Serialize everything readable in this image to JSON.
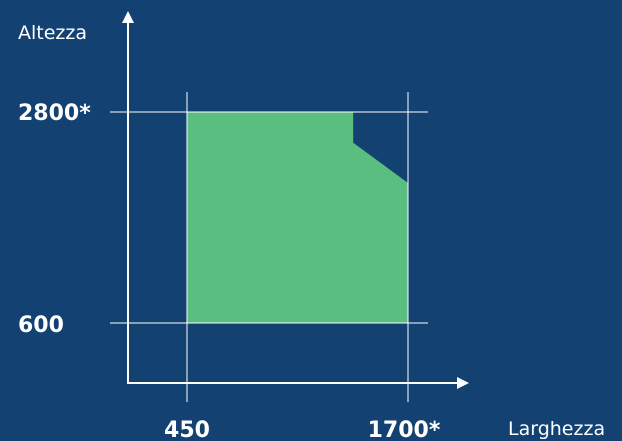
{
  "diagram": {
    "y_axis_label": "Altezza",
    "x_axis_label": "Larghezza",
    "y_ticks": [
      "2800*",
      "600"
    ],
    "x_ticks": [
      "450",
      "1700*"
    ]
  },
  "chart_data": {
    "type": "area",
    "xlabel": "Larghezza",
    "ylabel": "Altezza",
    "x_ticks": [
      450,
      1700
    ],
    "y_ticks": [
      600,
      2800
    ],
    "region_polygon": [
      {
        "x": 450,
        "y": 600
      },
      {
        "x": 450,
        "y": 2800
      },
      {
        "x": 1390,
        "y": 2800
      },
      {
        "x": 1390,
        "y": 2480
      },
      {
        "x": 1700,
        "y": 2060
      },
      {
        "x": 1700,
        "y": 600
      }
    ],
    "colors": {
      "background": "#134272",
      "fill": "#5abe80",
      "axis": "#ffffff"
    }
  }
}
